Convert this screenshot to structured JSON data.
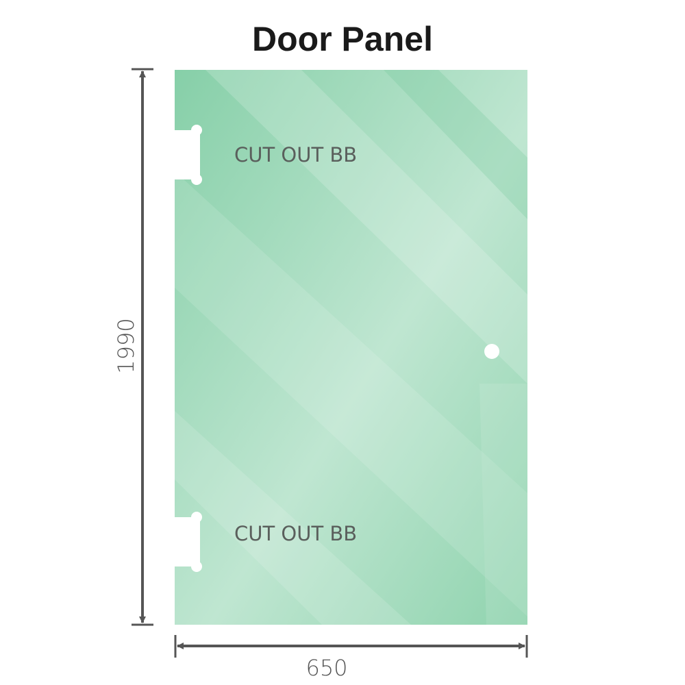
{
  "title": "Door Panel",
  "panel": {
    "glass_color": "#86cfa8",
    "highlight_color": "#bfe6d1",
    "cutouts": [
      {
        "label": "CUT OUT BB"
      },
      {
        "label": "CUT OUT BB"
      }
    ],
    "handle_hole": true
  },
  "dimensions": {
    "height": "1990",
    "width": "650",
    "line_color": "#555555"
  }
}
